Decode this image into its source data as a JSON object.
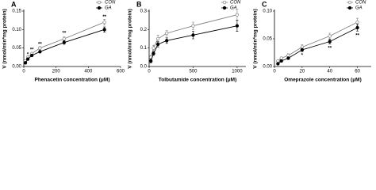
{
  "chart_data": [
    {
      "type": "line",
      "label": "A",
      "x_label": "Phenacetin concentration (μM)",
      "y_label": "V (nmol/min*mg protein)",
      "x": [
        10,
        25,
        50,
        100,
        250,
        500
      ],
      "series": [
        {
          "name": "CON",
          "color": "#808080",
          "marker": "open",
          "values": [
            0.015,
            0.025,
            0.035,
            0.05,
            0.075,
            0.12
          ],
          "errors": [
            0.002,
            0.003,
            0.003,
            0.004,
            0.005,
            0.008
          ]
        },
        {
          "name": "GA",
          "color": "#000000",
          "marker": "filled",
          "values": [
            0.01,
            0.02,
            0.03,
            0.04,
            0.065,
            0.1
          ],
          "errors": [
            0.002,
            0.002,
            0.003,
            0.003,
            0.005,
            0.007
          ]
        }
      ],
      "annotations": [
        {
          "text": "*",
          "x": 25,
          "y": 0.032
        },
        {
          "text": "**",
          "x": 50,
          "y": 0.045
        },
        {
          "text": "**",
          "x": 100,
          "y": 0.06
        },
        {
          "text": "**",
          "x": 250,
          "y": 0.09
        },
        {
          "text": "**",
          "x": 500,
          "y": 0.134
        }
      ],
      "xlim": [
        0,
        600
      ],
      "xticks": [
        0,
        200,
        400,
        600
      ],
      "ylim": [
        0,
        0.15
      ],
      "yticks": [
        {
          "value": 0,
          "label": "0.00"
        },
        {
          "value": 0.05,
          "label": "0.05"
        },
        {
          "value": 0.1,
          "label": "0.10"
        },
        {
          "value": 0.15,
          "label": "0.15"
        }
      ],
      "legend": "upper right"
    },
    {
      "type": "line",
      "label": "B",
      "x_label": "Tolbutamide concentration (μM)",
      "y_label": "V (nmol/min*mg protein)",
      "x": [
        20,
        50,
        100,
        200,
        500,
        1000
      ],
      "series": [
        {
          "name": "CON",
          "color": "#808080",
          "marker": "open",
          "values": [
            0.05,
            0.1,
            0.15,
            0.18,
            0.22,
            0.28
          ],
          "errors": [
            0.01,
            0.015,
            0.02,
            0.015,
            0.02,
            0.03
          ]
        },
        {
          "name": "GA",
          "color": "#000000",
          "marker": "filled",
          "values": [
            0.03,
            0.07,
            0.12,
            0.14,
            0.17,
            0.22
          ],
          "errors": [
            0.01,
            0.01,
            0.015,
            0.015,
            0.02,
            0.03
          ]
        }
      ],
      "annotations": [],
      "xlim": [
        0,
        1100
      ],
      "xticks": [
        0,
        500,
        1000
      ],
      "ylim": [
        0,
        0.3
      ],
      "yticks": [
        {
          "value": 0,
          "label": "0.0"
        },
        0.1,
        0.2,
        0.3
      ],
      "legend": "upper right"
    },
    {
      "type": "line",
      "label": "C",
      "x_label": "Omeprazole concentration (μM)",
      "y_label": "V (nmol/min*mg protein)",
      "x": [
        2.5,
        5,
        10,
        20,
        40,
        60
      ],
      "series": [
        {
          "name": "CON",
          "color": "#808080",
          "marker": "open",
          "values": [
            0.01,
            0.015,
            0.02,
            0.035,
            0.055,
            0.08
          ],
          "errors": [
            0.002,
            0.002,
            0.003,
            0.004,
            0.005,
            0.007
          ]
        },
        {
          "name": "GA",
          "color": "#000000",
          "marker": "filled",
          "values": [
            0.005,
            0.01,
            0.015,
            0.03,
            0.045,
            0.07
          ],
          "errors": [
            0.002,
            0.002,
            0.002,
            0.003,
            0.004,
            0.006
          ]
        }
      ],
      "annotations": [
        {
          "text": "*",
          "x": 20,
          "y": 0.02
        },
        {
          "text": "**",
          "x": 40,
          "y": 0.033
        },
        {
          "text": "**",
          "x": 60,
          "y": 0.056
        }
      ],
      "xlim": [
        0,
        70
      ],
      "xticks": [
        0,
        20,
        40,
        60
      ],
      "ylim": [
        0,
        0.1
      ],
      "yticks": [
        {
          "value": 0,
          "label": "0.00"
        },
        {
          "value": 0.05,
          "label": "0.05"
        },
        {
          "value": 0.1,
          "label": "0.10"
        }
      ],
      "legend": "upper right"
    }
  ]
}
